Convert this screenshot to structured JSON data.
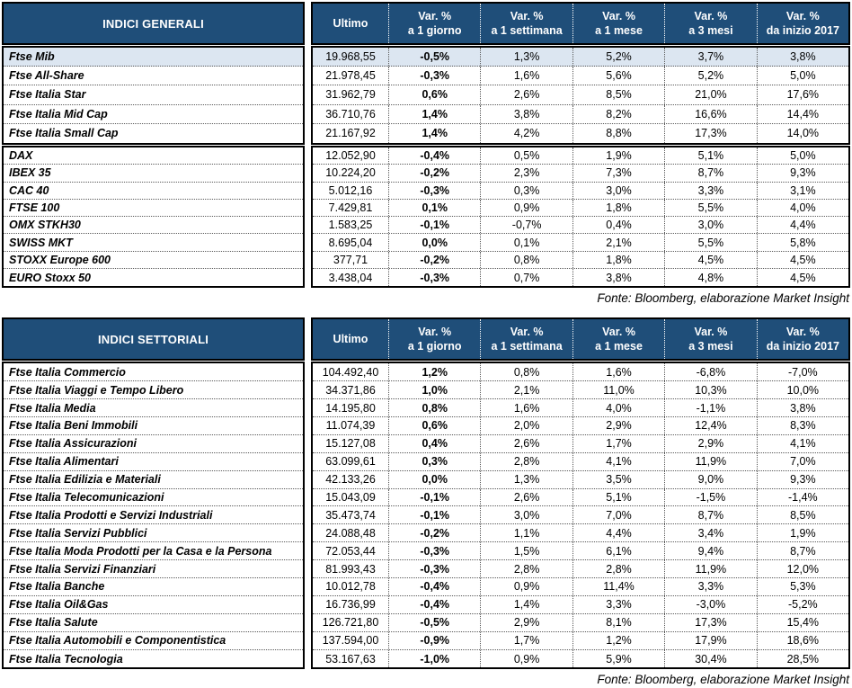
{
  "colors": {
    "header_bg": "#1F4E79",
    "highlight_row": "#DCE6F1"
  },
  "table1": {
    "title": "INDICI GENERALI",
    "header": {
      "ultimo": "Ultimo",
      "var_cols": [
        {
          "label": "Var. %",
          "period": "a 1 giorno"
        },
        {
          "label": "Var. %",
          "period": "a 1 settimana"
        },
        {
          "label": "Var. %",
          "period": "a 1 mese"
        },
        {
          "label": "Var. %",
          "period": "a 3 mesi"
        },
        {
          "label": "Var. %",
          "period": "da inizio 2017"
        }
      ]
    },
    "groups": [
      {
        "rows": [
          {
            "name": "Ftse Mib",
            "highlight": true,
            "ultimo": "19.968,55",
            "vars": [
              "-0,5%",
              "1,3%",
              "5,2%",
              "3,7%",
              "3,8%"
            ]
          },
          {
            "name": "Ftse All-Share",
            "ultimo": "21.978,45",
            "vars": [
              "-0,3%",
              "1,6%",
              "5,6%",
              "5,2%",
              "5,0%"
            ]
          },
          {
            "name": "Ftse Italia Star",
            "ultimo": "31.962,79",
            "vars": [
              "0,6%",
              "2,6%",
              "8,5%",
              "21,0%",
              "17,6%"
            ]
          },
          {
            "name": "Ftse Italia Mid Cap",
            "ultimo": "36.710,76",
            "vars": [
              "1,4%",
              "3,8%",
              "8,2%",
              "16,6%",
              "14,4%"
            ]
          },
          {
            "name": "Ftse Italia Small Cap",
            "ultimo": "21.167,92",
            "vars": [
              "1,4%",
              "4,2%",
              "8,8%",
              "17,3%",
              "14,0%"
            ]
          }
        ]
      },
      {
        "rows": [
          {
            "name": "DAX",
            "ultimo": "12.052,90",
            "vars": [
              "-0,4%",
              "0,5%",
              "1,9%",
              "5,1%",
              "5,0%"
            ]
          },
          {
            "name": "IBEX 35",
            "ultimo": "10.224,20",
            "vars": [
              "-0,2%",
              "2,3%",
              "7,3%",
              "8,7%",
              "9,3%"
            ]
          },
          {
            "name": "CAC 40",
            "ultimo": "5.012,16",
            "vars": [
              "-0,3%",
              "0,3%",
              "3,0%",
              "3,3%",
              "3,1%"
            ]
          },
          {
            "name": "FTSE 100",
            "ultimo": "7.429,81",
            "vars": [
              "0,1%",
              "0,9%",
              "1,8%",
              "5,5%",
              "4,0%"
            ]
          },
          {
            "name": "OMX STKH30",
            "ultimo": "1.583,25",
            "vars": [
              "-0,1%",
              "-0,7%",
              "0,4%",
              "3,0%",
              "4,4%"
            ]
          },
          {
            "name": "SWISS MKT",
            "ultimo": "8.695,04",
            "vars": [
              "0,0%",
              "0,1%",
              "2,1%",
              "5,5%",
              "5,8%"
            ]
          },
          {
            "name": "STOXX Europe 600",
            "ultimo": "377,71",
            "vars": [
              "-0,2%",
              "0,8%",
              "1,8%",
              "4,5%",
              "4,5%"
            ]
          },
          {
            "name": "EURO Stoxx 50",
            "ultimo": "3.438,04",
            "vars": [
              "-0,3%",
              "0,7%",
              "3,8%",
              "4,8%",
              "4,5%"
            ]
          }
        ]
      }
    ],
    "source": "Fonte: Bloomberg, elaborazione Market Insight"
  },
  "table2": {
    "title": "INDICI SETTORIALI",
    "header": {
      "ultimo": "Ultimo",
      "var_cols": [
        {
          "label": "Var. %",
          "period": "a 1 giorno"
        },
        {
          "label": "Var. %",
          "period": "a 1 settimana"
        },
        {
          "label": "Var. %",
          "period": "a 1 mese"
        },
        {
          "label": "Var. %",
          "period": "a 3 mesi"
        },
        {
          "label": "Var. %",
          "period": "da inizio 2017"
        }
      ]
    },
    "groups": [
      {
        "rows": [
          {
            "name": "Ftse Italia Commercio",
            "ultimo": "104.492,40",
            "vars": [
              "1,2%",
              "0,8%",
              "1,6%",
              "-6,8%",
              "-7,0%"
            ]
          },
          {
            "name": "Ftse Italia Viaggi e Tempo Libero",
            "ultimo": "34.371,86",
            "vars": [
              "1,0%",
              "2,1%",
              "11,0%",
              "10,3%",
              "10,0%"
            ]
          },
          {
            "name": "Ftse Italia Media",
            "ultimo": "14.195,80",
            "vars": [
              "0,8%",
              "1,6%",
              "4,0%",
              "-1,1%",
              "3,8%"
            ]
          },
          {
            "name": "Ftse Italia Beni Immobili",
            "ultimo": "11.074,39",
            "vars": [
              "0,6%",
              "2,0%",
              "2,9%",
              "12,4%",
              "8,3%"
            ]
          },
          {
            "name": "Ftse Italia Assicurazioni",
            "ultimo": "15.127,08",
            "vars": [
              "0,4%",
              "2,6%",
              "1,7%",
              "2,9%",
              "4,1%"
            ]
          },
          {
            "name": "Ftse Italia Alimentari",
            "ultimo": "63.099,61",
            "vars": [
              "0,3%",
              "2,8%",
              "4,1%",
              "11,9%",
              "7,0%"
            ]
          },
          {
            "name": "Ftse Italia Edilizia e Materiali",
            "ultimo": "42.133,26",
            "vars": [
              "0,0%",
              "1,3%",
              "3,5%",
              "9,0%",
              "9,3%"
            ]
          },
          {
            "name": "Ftse Italia Telecomunicazioni",
            "ultimo": "15.043,09",
            "vars": [
              "-0,1%",
              "2,6%",
              "5,1%",
              "-1,5%",
              "-1,4%"
            ]
          },
          {
            "name": "Ftse Italia Prodotti e Servizi Industriali",
            "ultimo": "35.473,74",
            "vars": [
              "-0,1%",
              "3,0%",
              "7,0%",
              "8,7%",
              "8,5%"
            ]
          },
          {
            "name": "Ftse Italia Servizi Pubblici",
            "ultimo": "24.088,48",
            "vars": [
              "-0,2%",
              "1,1%",
              "4,4%",
              "3,4%",
              "1,9%"
            ]
          },
          {
            "name": "Ftse Italia Moda Prodotti per la Casa e la Persona",
            "ultimo": "72.053,44",
            "vars": [
              "-0,3%",
              "1,5%",
              "6,1%",
              "9,4%",
              "8,7%"
            ]
          },
          {
            "name": "Ftse Italia Servizi Finanziari",
            "ultimo": "81.993,43",
            "vars": [
              "-0,3%",
              "2,8%",
              "2,8%",
              "11,9%",
              "12,0%"
            ]
          },
          {
            "name": "Ftse Italia Banche",
            "ultimo": "10.012,78",
            "vars": [
              "-0,4%",
              "0,9%",
              "11,4%",
              "3,3%",
              "5,3%"
            ]
          },
          {
            "name": "Ftse Italia Oil&Gas",
            "ultimo": "16.736,99",
            "vars": [
              "-0,4%",
              "1,4%",
              "3,3%",
              "-3,0%",
              "-5,2%"
            ]
          },
          {
            "name": "Ftse Italia Salute",
            "ultimo": "126.721,80",
            "vars": [
              "-0,5%",
              "2,9%",
              "8,1%",
              "17,3%",
              "15,4%"
            ]
          },
          {
            "name": "Ftse Italia Automobili e Componentistica",
            "ultimo": "137.594,00",
            "vars": [
              "-0,9%",
              "1,7%",
              "1,2%",
              "17,9%",
              "18,6%"
            ]
          },
          {
            "name": "Ftse Italia Tecnologia",
            "ultimo": "53.167,63",
            "vars": [
              "-1,0%",
              "0,9%",
              "5,9%",
              "30,4%",
              "28,5%"
            ]
          }
        ]
      }
    ],
    "source": "Fonte: Bloomberg, elaborazione Market Insight"
  }
}
